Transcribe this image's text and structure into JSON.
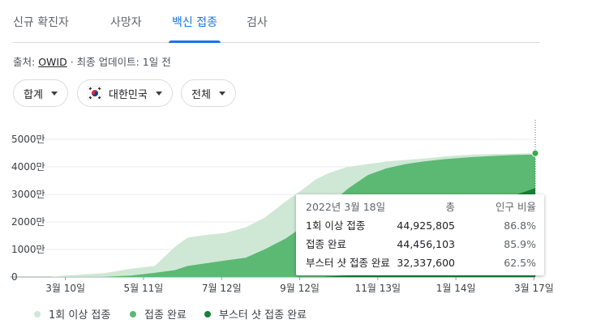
{
  "tabs": [
    {
      "label": "신규 확진자",
      "active": false
    },
    {
      "label": "사망자",
      "active": false
    },
    {
      "label": "백신 접종",
      "active": true
    },
    {
      "label": "검사",
      "active": false
    }
  ],
  "source": {
    "prefix": "출처:",
    "link": "OWID",
    "updated": "· 최종 업데이트: 1일 전"
  },
  "filters": {
    "metric": "합계",
    "country": "대한민국",
    "scope": "전체"
  },
  "colors": {
    "one_dose": "#cfe8d6",
    "full": "#5bb974",
    "booster": "#188038",
    "accent": "#1a73e8"
  },
  "tooltip": {
    "date": "2022년 3월 18일",
    "col_total": "총",
    "col_ratio": "인구 비율",
    "rows": [
      {
        "label": "1회 이상 접종",
        "total": "44,925,805",
        "ratio": "86.8%"
      },
      {
        "label": "접종 완료",
        "total": "44,456,103",
        "ratio": "85.9%"
      },
      {
        "label": "부스터 샷 접종 완료",
        "total": "32,337,600",
        "ratio": "62.5%"
      }
    ]
  },
  "chart_data": {
    "type": "area",
    "x_start": "2021-02-26",
    "x_end": "2022-03-18",
    "y_tick_labels": [
      "0",
      "1000만",
      "2000만",
      "3000만",
      "4000만",
      "5000만"
    ],
    "y_tick_values": [
      0,
      10000000,
      20000000,
      30000000,
      40000000,
      50000000
    ],
    "ylim": [
      0,
      50000000
    ],
    "x_tick_labels": [
      "3월 10일",
      "5월 11일",
      "7월 12일",
      "9월 12일",
      "11월 13일",
      "1월 14일",
      "3월 17일"
    ],
    "x_tick_dates": [
      "2021-03-10",
      "2021-05-11",
      "2021-07-12",
      "2021-09-12",
      "2021-11-13",
      "2022-01-14",
      "2022-03-17"
    ],
    "grid": true,
    "legend_position": "bottom",
    "series": [
      {
        "name": "1회 이상 접종",
        "color": "#cfe8d6",
        "x": [
          "2021-02-26",
          "2021-03-10",
          "2021-04-10",
          "2021-05-01",
          "2021-05-20",
          "2021-06-05",
          "2021-06-15",
          "2021-06-30",
          "2021-07-15",
          "2021-07-31",
          "2021-08-15",
          "2021-09-01",
          "2021-09-12",
          "2021-09-25",
          "2021-10-05",
          "2021-10-20",
          "2021-11-05",
          "2021-11-20",
          "2021-12-05",
          "2021-12-20",
          "2022-01-05",
          "2022-01-25",
          "2022-02-15",
          "2022-03-01",
          "2022-03-18"
        ],
        "values": [
          0,
          500000,
          1400000,
          3000000,
          4000000,
          11000000,
          14300000,
          15300000,
          16000000,
          18000000,
          21500000,
          27500000,
          31000000,
          35500000,
          37700000,
          40000000,
          41000000,
          42000000,
          42500000,
          43000000,
          43800000,
          44400000,
          44700000,
          44800000,
          44925805
        ]
      },
      {
        "name": "접종 완료",
        "color": "#5bb974",
        "x": [
          "2021-02-26",
          "2021-04-10",
          "2021-05-01",
          "2021-05-20",
          "2021-06-05",
          "2021-06-15",
          "2021-06-30",
          "2021-07-15",
          "2021-07-31",
          "2021-08-15",
          "2021-09-01",
          "2021-09-12",
          "2021-09-25",
          "2021-10-05",
          "2021-10-20",
          "2021-11-05",
          "2021-11-20",
          "2021-12-05",
          "2021-12-20",
          "2022-01-05",
          "2022-01-25",
          "2022-02-15",
          "2022-03-01",
          "2022-03-18"
        ],
        "values": [
          0,
          100000,
          500000,
          1500000,
          2500000,
          4000000,
          5000000,
          6000000,
          7000000,
          10000000,
          14000000,
          17500000,
          22000000,
          26000000,
          32000000,
          37000000,
          39500000,
          41000000,
          42000000,
          42800000,
          43500000,
          44000000,
          44300000,
          44456103
        ]
      },
      {
        "name": "부스터 샷 접종 완료",
        "color": "#188038",
        "x": [
          "2021-02-26",
          "2021-10-01",
          "2021-11-01",
          "2021-11-20",
          "2021-12-05",
          "2021-12-20",
          "2022-01-05",
          "2022-01-25",
          "2022-02-10",
          "2022-02-25",
          "2022-03-10",
          "2022-03-18"
        ],
        "values": [
          0,
          0,
          1000000,
          3000000,
          7000000,
          12000000,
          18000000,
          23000000,
          26500000,
          29000000,
          31000000,
          32337600
        ]
      }
    ]
  }
}
